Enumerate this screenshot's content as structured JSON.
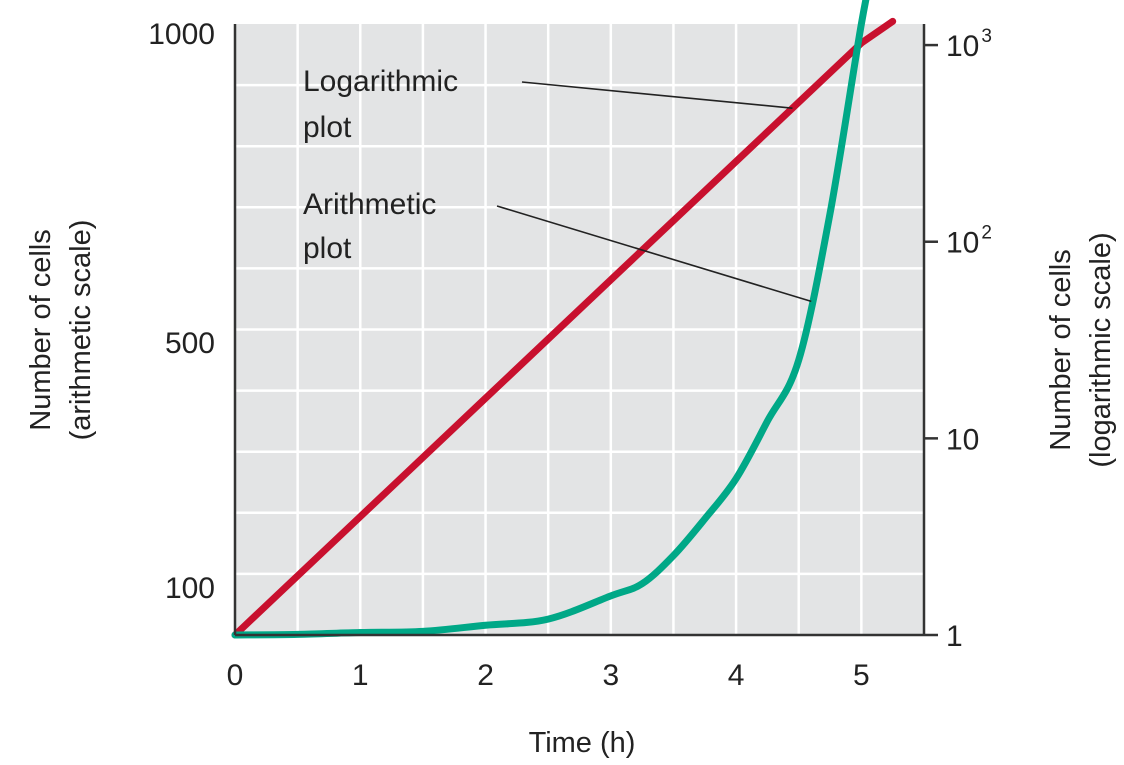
{
  "chart_data": {
    "type": "line",
    "title": "",
    "xlabel": "Time (h)",
    "ylabel_left": [
      "Number of cells",
      "(arithmetic scale)"
    ],
    "ylabel_right": [
      "Number of cells",
      "(logarithmic scale)"
    ],
    "xlim": [
      0,
      5.5
    ],
    "x_ticks": [
      "0",
      "1",
      "2",
      "3",
      "4",
      "5"
    ],
    "x_tick_values": [
      0,
      1,
      2,
      3,
      4,
      5
    ],
    "left_ylim": [
      0,
      1000
    ],
    "left_y_ticks": [
      "1000",
      "500",
      "100"
    ],
    "left_y_tick_values": [
      1000,
      500,
      100
    ],
    "right_scale": "log",
    "right_ylim": [
      1,
      1280
    ],
    "right_y_ticks": [
      {
        "base": "1",
        "exp": "",
        "value": 1
      },
      {
        "base": "10",
        "exp": "",
        "value": 10
      },
      {
        "base": "10",
        "exp": "2",
        "value": 100
      },
      {
        "base": "10",
        "exp": "3",
        "value": 1000
      }
    ],
    "grid": true,
    "grid_step_x": 0.5,
    "series": [
      {
        "label": "Logarithmic plot",
        "axis": "right",
        "color": "#c8102e",
        "x": [
          0,
          1,
          2,
          3,
          4,
          5,
          5.25
        ],
        "y": [
          1,
          4,
          16,
          64,
          256,
          1024,
          1320
        ]
      },
      {
        "label": "Arithmetic plot",
        "axis": "left",
        "color": "#00a887",
        "x": [
          0,
          0.5,
          1,
          1.5,
          2,
          2.5,
          3,
          3.25,
          3.5,
          3.75,
          4,
          4.25,
          4.5,
          4.75,
          5,
          5.1
        ],
        "y": [
          0,
          1,
          4,
          6,
          16,
          26,
          64,
          84,
          130,
          190,
          256,
          350,
          450,
          690,
          1000,
          1100
        ]
      }
    ],
    "annotations": [
      {
        "lines": [
          "Logarithmic",
          "plot"
        ],
        "series": 0
      },
      {
        "lines": [
          "Arithmetic",
          "plot"
        ],
        "series": 1
      }
    ]
  }
}
